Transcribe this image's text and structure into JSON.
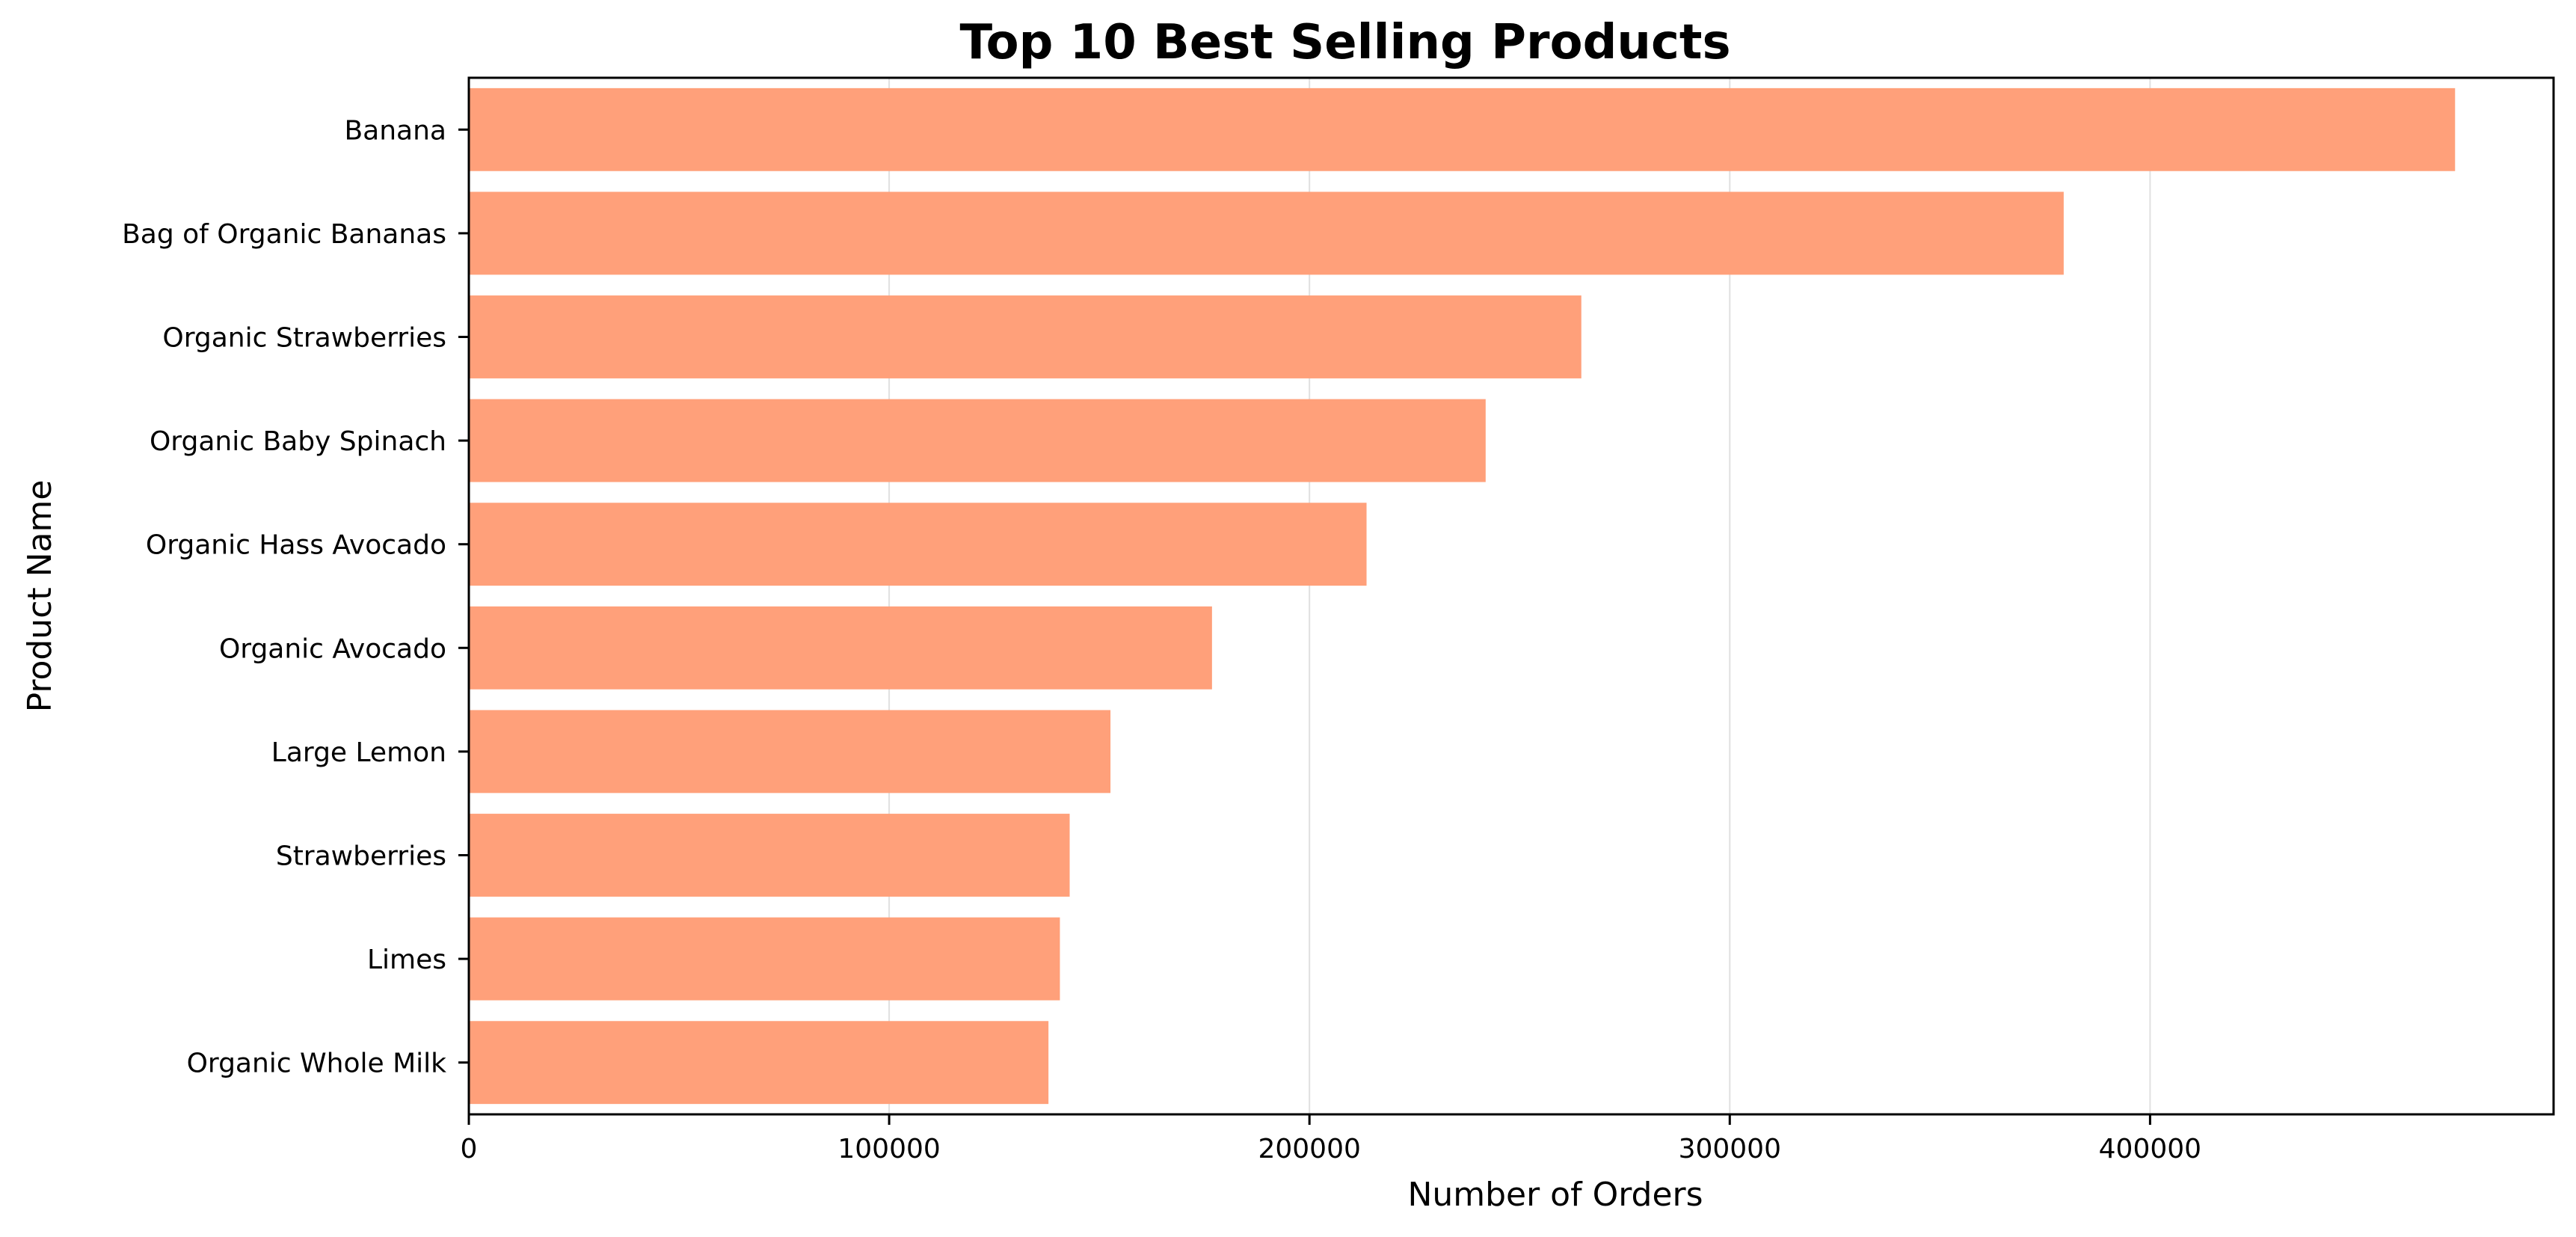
{
  "chart_data": {
    "type": "bar",
    "orientation": "horizontal",
    "title": "Top 10 Best Selling Products",
    "xlabel": "Number of Orders",
    "ylabel": "Product Name",
    "categories": [
      "Banana",
      "Bag of Organic Bananas",
      "Organic Strawberries",
      "Organic Baby Spinach",
      "Organic Hass Avocado",
      "Organic Avocado",
      "Large Lemon",
      "Strawberries",
      "Limes",
      "Organic Whole Milk"
    ],
    "values": [
      472565,
      379450,
      264683,
      241921,
      213584,
      176815,
      152657,
      142951,
      140627,
      137905
    ],
    "xlim": [
      0,
      496000
    ],
    "xticks": [
      0,
      100000,
      200000,
      300000,
      400000
    ],
    "xtick_labels": [
      "0",
      "100000",
      "200000",
      "300000",
      "400000"
    ],
    "grid": {
      "x": true,
      "y": false
    },
    "colors": {
      "bar": "#FFA07A",
      "grid": "#e0e0e0",
      "axis": "#000000"
    }
  }
}
